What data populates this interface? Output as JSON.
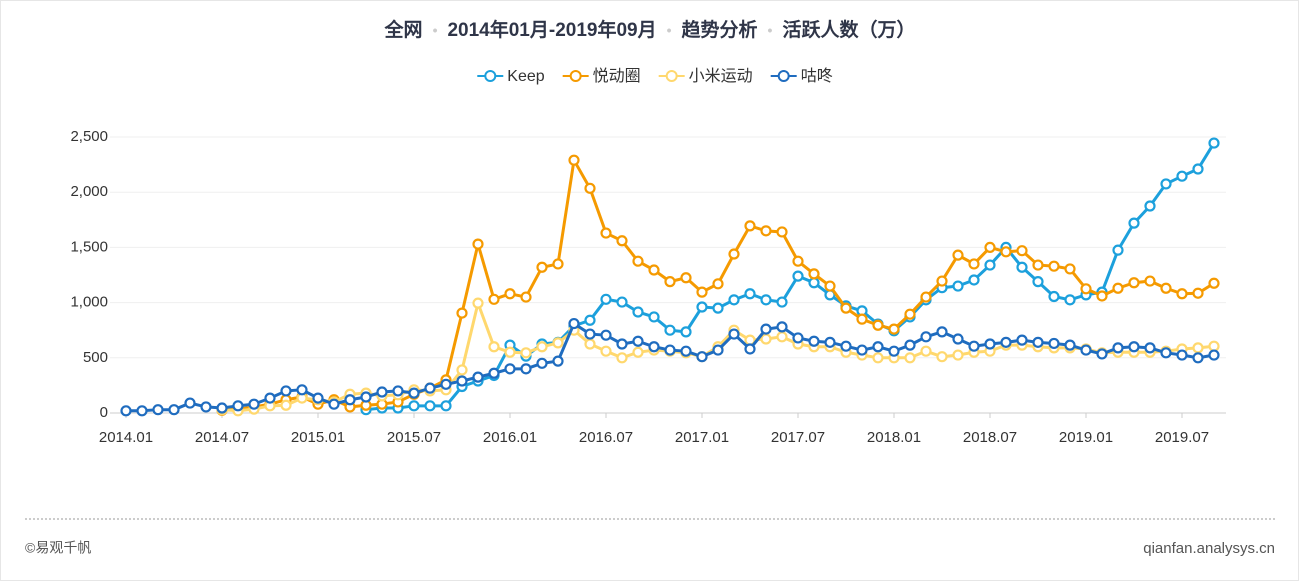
{
  "chart_data": {
    "type": "line",
    "title_parts": [
      "全网",
      "2014年01月-2019年09月",
      "趋势分析",
      "活跃人数（万）"
    ],
    "categories": [
      "2014.01",
      null,
      null,
      null,
      null,
      null,
      "2014.07",
      null,
      null,
      null,
      null,
      null,
      "2015.01",
      null,
      null,
      null,
      null,
      null,
      "2015.07",
      null,
      null,
      null,
      null,
      null,
      "2016.01",
      null,
      null,
      null,
      null,
      null,
      "2016.07",
      null,
      null,
      null,
      null,
      null,
      "2017.01",
      null,
      null,
      null,
      null,
      null,
      "2017.07",
      null,
      null,
      null,
      null,
      null,
      "2018.01",
      null,
      null,
      null,
      null,
      null,
      "2018.07",
      null,
      null,
      null,
      null,
      null,
      "2019.01",
      null,
      null,
      null,
      null,
      null,
      "2019.07",
      null,
      null
    ],
    "series": [
      {
        "name": "Keep",
        "color": "#1ca0dc",
        "values": [
          null,
          null,
          null,
          null,
          null,
          null,
          null,
          null,
          null,
          null,
          null,
          null,
          null,
          null,
          null,
          30,
          45,
          45,
          65,
          65,
          65,
          240,
          290,
          340,
          615,
          515,
          625,
          640,
          790,
          840,
          1030,
          1005,
          915,
          870,
          750,
          735,
          960,
          950,
          1025,
          1080,
          1025,
          1005,
          1240,
          1180,
          1070,
          970,
          925,
          805,
          745,
          870,
          1025,
          1135,
          1150,
          1205,
          1340,
          1500,
          1320,
          1190,
          1055,
          1025,
          1070,
          1095,
          1475,
          1720,
          1875,
          2075,
          2145,
          2210,
          2445
        ]
      },
      {
        "name": "悦动圈",
        "color": "#f59a00",
        "values": [
          null,
          null,
          null,
          null,
          null,
          null,
          25,
          35,
          55,
          80,
          120,
          145,
          80,
          120,
          55,
          70,
          80,
          100,
          170,
          225,
          300,
          905,
          1530,
          1030,
          1080,
          1050,
          1320,
          1350,
          2290,
          2035,
          1630,
          1560,
          1375,
          1295,
          1190,
          1225,
          1095,
          1170,
          1440,
          1695,
          1650,
          1640,
          1375,
          1260,
          1150,
          950,
          850,
          795,
          760,
          895,
          1050,
          1195,
          1430,
          1350,
          1500,
          1460,
          1470,
          1340,
          1330,
          1305,
          1125,
          1060,
          1130,
          1180,
          1195,
          1130,
          1080,
          1085,
          1175
        ]
      },
      {
        "name": "小米运动",
        "color": "#ffd86e",
        "values": [
          null,
          null,
          null,
          null,
          null,
          null,
          30,
          20,
          35,
          65,
          70,
          135,
          120,
          100,
          170,
          180,
          155,
          165,
          210,
          200,
          210,
          390,
          995,
          600,
          550,
          545,
          600,
          635,
          750,
          625,
          560,
          500,
          550,
          570,
          560,
          545,
          510,
          600,
          750,
          660,
          670,
          690,
          625,
          600,
          600,
          550,
          525,
          500,
          500,
          500,
          560,
          510,
          525,
          550,
          560,
          615,
          615,
          600,
          590,
          590,
          580,
          545,
          550,
          550,
          550,
          560,
          580,
          590,
          605
        ]
      },
      {
        "name": "咕咚",
        "color": "#1f6cbf",
        "values": [
          20,
          20,
          30,
          30,
          90,
          55,
          45,
          65,
          80,
          135,
          200,
          210,
          135,
          80,
          120,
          145,
          190,
          200,
          180,
          225,
          260,
          290,
          325,
          360,
          400,
          400,
          450,
          470,
          810,
          715,
          705,
          625,
          650,
          600,
          570,
          560,
          510,
          570,
          715,
          580,
          760,
          780,
          680,
          650,
          640,
          605,
          570,
          600,
          560,
          615,
          690,
          735,
          670,
          605,
          625,
          640,
          660,
          640,
          630,
          615,
          570,
          535,
          590,
          600,
          590,
          545,
          525,
          500,
          525
        ]
      }
    ],
    "ylim": [
      0,
      2500
    ],
    "yticks": [
      0,
      500,
      {
        "value": 1000,
        "label": "1,000"
      },
      {
        "value": 1500,
        "label": "1,500"
      },
      {
        "value": 2000,
        "label": "2,000"
      },
      {
        "value": 2500,
        "label": "2,500"
      }
    ],
    "grid": true
  },
  "footer": {
    "left": "©易观千帆",
    "right": "qianfan.analysys.cn"
  }
}
